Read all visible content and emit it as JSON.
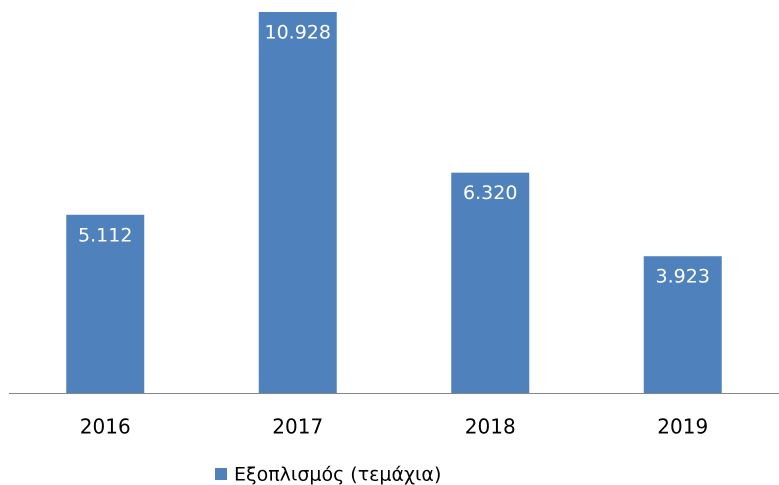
{
  "chart_data": {
    "type": "bar",
    "categories": [
      "2016",
      "2017",
      "2018",
      "2019"
    ],
    "series": [
      {
        "name": "Εξοπλισμός (τεμάχια)",
        "color": "#4f81bd",
        "values": [
          5112,
          10928,
          6320,
          3923
        ],
        "value_labels": [
          "5.112",
          "10.928",
          "6.320",
          "3.923"
        ]
      }
    ],
    "legend": "bottom"
  }
}
